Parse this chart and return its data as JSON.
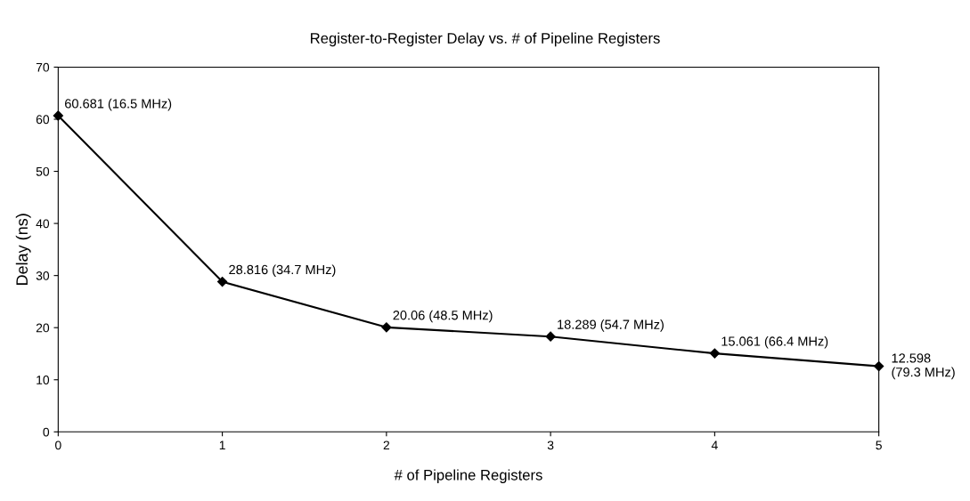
{
  "chart_data": {
    "type": "line",
    "title": "Register-to-Register Delay vs. # of Pipeline Registers",
    "xlabel": "# of Pipeline Registers",
    "ylabel": "Delay (ns)",
    "x": [
      0,
      1,
      2,
      3,
      4,
      5
    ],
    "series": [
      {
        "color": "#000000",
        "values": [
          60.681,
          28.816,
          20.06,
          18.289,
          15.061,
          12.598
        ],
        "value_labels": [
          "60.681 (16.5 MHz)",
          "28.816 (34.7 MHz)",
          "20.06 (48.5 MHz)",
          "18.289 (54.7 MHz)",
          "15.061 (66.4 MHz)",
          "12.598\n(79.3 MHz)"
        ]
      }
    ],
    "xlim": [
      0,
      5
    ],
    "xticks": [
      0,
      1,
      2,
      3,
      4,
      5
    ],
    "ylim": [
      0,
      70
    ],
    "yticks": [
      0,
      10,
      20,
      30,
      40,
      50,
      60,
      70
    ],
    "marker": "diamond",
    "line_style": "solid",
    "grid": false,
    "legend": false
  }
}
